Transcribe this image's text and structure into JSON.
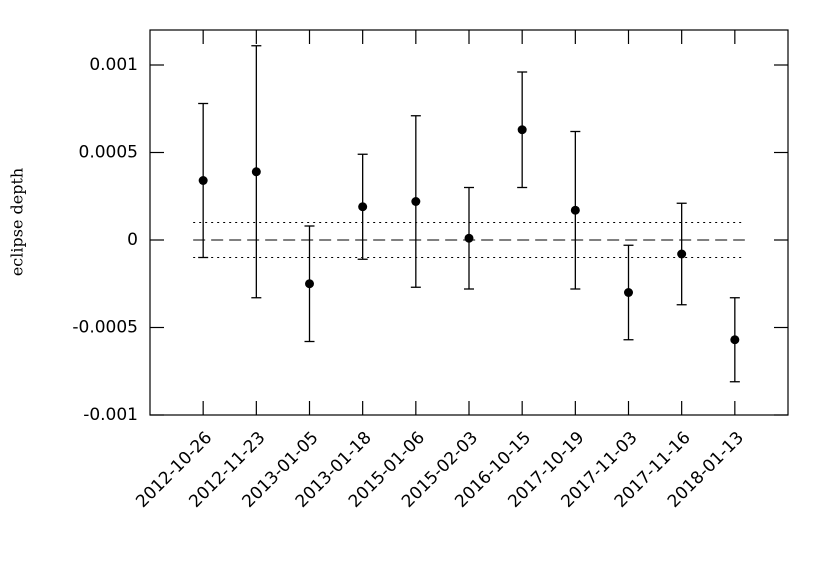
{
  "chart_data": {
    "type": "errorbar",
    "y_label": "eclipse depth",
    "categories": [
      "2012-10-26",
      "2012-11-23",
      "2013-01-05",
      "2013-01-18",
      "2015-01-06",
      "2015-02-03",
      "2016-10-15",
      "2017-10-19",
      "2017-11-03",
      "2017-11-16",
      "2018-01-13"
    ],
    "values": [
      0.00034,
      0.00039,
      -0.00025,
      0.00019,
      0.00022,
      1e-05,
      0.00063,
      0.00017,
      -0.0003,
      -8e-05,
      -0.00057
    ],
    "errors": [
      0.00044,
      0.00072,
      0.00033,
      0.0003,
      0.00049,
      0.00029,
      0.00033,
      0.00045,
      0.00027,
      0.00029,
      0.00024
    ],
    "color": "#000000",
    "ylim": [
      -0.001,
      0.0012
    ],
    "yticks": [
      -0.001,
      -0.0005,
      0,
      0.0005,
      0.001
    ],
    "reference_lines": [
      {
        "value": 0,
        "style": "dashed"
      },
      {
        "value": 0.0001,
        "style": "dotted"
      },
      {
        "value": -0.0001,
        "style": "dotted"
      }
    ],
    "grid": false
  }
}
